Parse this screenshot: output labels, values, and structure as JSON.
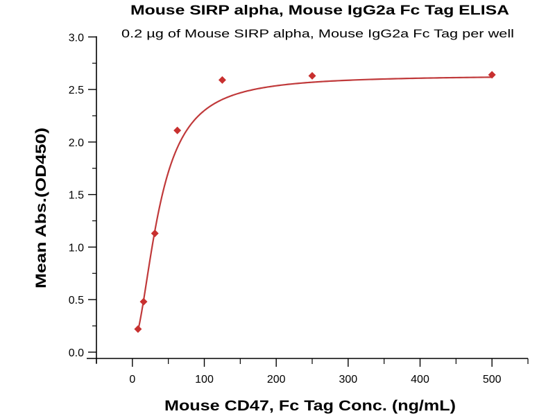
{
  "chart_data": {
    "type": "scatter",
    "title": "Mouse SIRP alpha, Mouse IgG2a Fc Tag ELISA",
    "subtitle": "0.2 µg of Mouse SIRP alpha, Mouse IgG2a Fc Tag per well",
    "xlabel": "Mouse CD47, Fc Tag Conc. (ng/mL)",
    "ylabel": "Mean Abs.(OD450)",
    "xlim": [
      -50,
      550
    ],
    "ylim": [
      -0.06,
      3.0
    ],
    "xticks": [
      0,
      100,
      200,
      300,
      400,
      500
    ],
    "xtick_labels": [
      "0",
      "100",
      "200",
      "300",
      "400",
      "500"
    ],
    "xminor": [
      -50,
      50,
      150,
      250,
      350,
      450,
      550
    ],
    "yticks": [
      0,
      0.5,
      1.0,
      1.5,
      2.0,
      2.5,
      3.0
    ],
    "ytick_labels": [
      "0.0",
      "0.5",
      "1.0",
      "1.5",
      "2.0",
      "2.5",
      "3.0"
    ],
    "yminor": [
      0.25,
      0.75,
      1.25,
      1.75,
      2.25,
      2.75
    ],
    "grid": false,
    "series": [
      {
        "name": "Mean Abs.",
        "x": [
          7.8,
          15.6,
          31.25,
          62.5,
          125,
          250,
          500
        ],
        "y": [
          0.22,
          0.48,
          1.13,
          2.11,
          2.59,
          2.63,
          2.64
        ],
        "color": "#c8302f",
        "marker": "diamond"
      }
    ],
    "fit_curve": {
      "model": "4PL",
      "bottom": 0.08,
      "top": 2.635,
      "ec50": 37,
      "hill": 1.9,
      "x_range": [
        7.8,
        500
      ],
      "color": "#c0393a"
    }
  }
}
